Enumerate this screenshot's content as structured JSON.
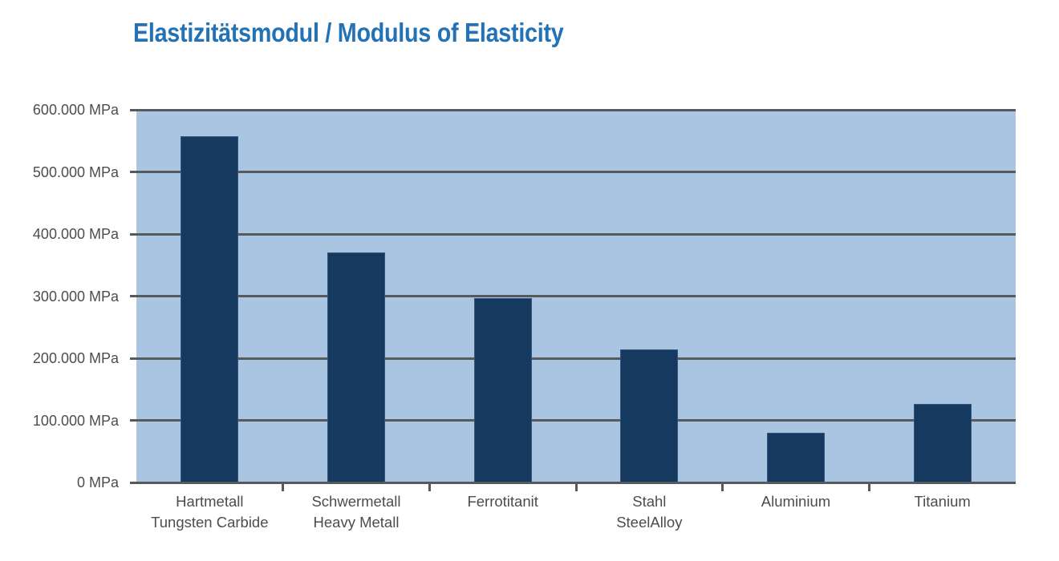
{
  "chart_data": {
    "type": "bar",
    "title": "Elastizitätsmodul / Modulus of Elasticity",
    "unit": "MPa",
    "xlabel": "",
    "ylabel": "",
    "categories": [
      {
        "lines": [
          "Hartmetall",
          "Tungsten Carbide"
        ]
      },
      {
        "lines": [
          "Schwermetall",
          "Heavy Metall"
        ]
      },
      {
        "lines": [
          "Ferrotitanit"
        ]
      },
      {
        "lines": [
          "Stahl",
          "SteelAlloy"
        ]
      },
      {
        "lines": [
          "Aluminium"
        ]
      },
      {
        "lines": [
          "Titanium"
        ]
      }
    ],
    "values": [
      557000,
      370000,
      297000,
      214000,
      80000,
      127000
    ],
    "ylim": [
      0,
      600000
    ],
    "ytick_step": 100000,
    "yticks": [
      {
        "value": 0,
        "label": "0 MPa"
      },
      {
        "value": 100000,
        "label": "100.000 MPa"
      },
      {
        "value": 200000,
        "label": "200.000 MPa"
      },
      {
        "value": 300000,
        "label": "300.000 MPa"
      },
      {
        "value": 400000,
        "label": "400.000 MPa"
      },
      {
        "value": 500000,
        "label": "500.000 MPa"
      },
      {
        "value": 600000,
        "label": "600.000 MPa"
      }
    ],
    "grid": true,
    "legend": false,
    "colors": {
      "title": "#2272B5",
      "bar": "#163A5F",
      "plot_background": "#A9C5E1",
      "gridline": "#58595B",
      "axis_label": "#4D4D4F",
      "page_background": "#FFFFFF"
    }
  }
}
